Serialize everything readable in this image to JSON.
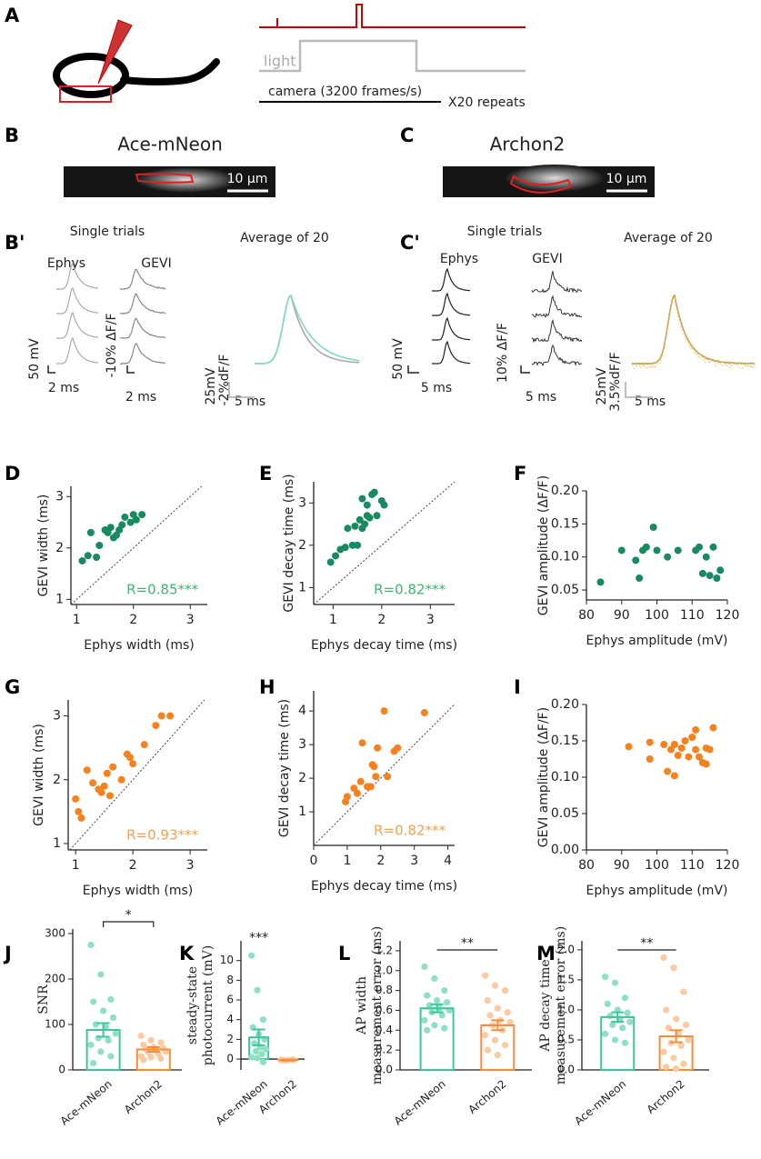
{
  "figure": {
    "A": {
      "label": "A",
      "light": "light",
      "camera": "camera (3200 frames/s)",
      "repeats": "X20 repeats"
    },
    "B": {
      "label": "B",
      "title": "Ace-mNeon",
      "scale": "10 μm"
    },
    "C": {
      "label": "C",
      "title": "Archon2",
      "scale": "10 μm"
    },
    "B_prime": {
      "label": "B'",
      "single": "Single trials",
      "ephys": "Ephys",
      "gevi": "GEVI",
      "average": "Average of 20",
      "ephys_v": "50 mV",
      "ephys_t": "2 ms",
      "gevi_v": "-10% ΔF/F",
      "gevi_t": "2 ms",
      "avg_v1": "25mV",
      "avg_v2": "-2%dF/F",
      "avg_t": "5 ms"
    },
    "C_prime": {
      "label": "C'",
      "single": "Single trials",
      "ephys": "Ephys",
      "gevi": "GEVI",
      "average": "Average of 20",
      "ephys_v": "50 mV",
      "ephys_t": "5 ms",
      "gevi_v": "10% ΔF/F",
      "gevi_t": "5 ms",
      "avg_v1": "25mV",
      "avg_v2": "3.5%dF/F",
      "avg_t": "5 ms"
    }
  },
  "chart_data": [
    {
      "type": "scatter",
      "panel": "D",
      "xlabel": "Ephys width (ms)",
      "ylabel": "GEVI width (ms)",
      "x": [
        1.1,
        1.2,
        1.35,
        1.25,
        1.4,
        1.5,
        1.55,
        1.6,
        1.65,
        1.7,
        1.75,
        1.8,
        1.85,
        1.95,
        2.0,
        2.05,
        2.15
      ],
      "values": [
        1.75,
        1.85,
        1.82,
        2.3,
        2.05,
        2.35,
        2.3,
        2.4,
        2.2,
        2.25,
        2.35,
        2.45,
        2.6,
        2.5,
        2.65,
        2.55,
        2.65
      ],
      "color": "#178a5e",
      "xlim": [
        0.9,
        3.3
      ],
      "ylim": [
        0.9,
        3.2
      ],
      "xticks": [
        1,
        2,
        3
      ],
      "yticks": [
        1,
        2,
        3
      ],
      "identity_line": true,
      "annotation": "R=0.85***",
      "annotation_color": "#3cb86e"
    },
    {
      "type": "scatter",
      "panel": "E",
      "xlabel": "Ephys decay time (ms)",
      "ylabel": "GEVI decay time (ms)",
      "x": [
        0.95,
        1.05,
        1.15,
        1.25,
        1.3,
        1.4,
        1.45,
        1.5,
        1.55,
        1.6,
        1.65,
        1.7,
        1.75,
        1.7,
        1.8,
        1.85,
        1.9,
        2.0,
        2.05,
        1.6
      ],
      "values": [
        1.6,
        1.75,
        1.9,
        1.95,
        2.4,
        2.0,
        2.45,
        2.0,
        2.6,
        2.4,
        2.5,
        2.7,
        2.65,
        2.95,
        3.2,
        3.25,
        2.7,
        3.05,
        2.95,
        3.1
      ],
      "color": "#178a5e",
      "xlim": [
        0.6,
        3.5
      ],
      "ylim": [
        0.6,
        3.5
      ],
      "xticks": [
        1,
        2,
        3
      ],
      "yticks": [
        1,
        2,
        3
      ],
      "identity_line": true,
      "annotation": "R=0.82***",
      "annotation_color": "#3cb86e"
    },
    {
      "type": "scatter",
      "panel": "F",
      "xlabel": "Ephys amplitude (mV)",
      "ylabel": "GEVI amplitude (ΔF/F)",
      "x": [
        84,
        90,
        94,
        95,
        96,
        97,
        99,
        100,
        103,
        106,
        111,
        112,
        113,
        114,
        115,
        116,
        117,
        118
      ],
      "values": [
        0.062,
        0.11,
        0.095,
        0.068,
        0.11,
        0.115,
        0.145,
        0.11,
        0.1,
        0.11,
        0.11,
        0.115,
        0.075,
        0.1,
        0.072,
        0.115,
        0.068,
        0.08
      ],
      "color": "#178a5e",
      "xlim": [
        80,
        120
      ],
      "ylim": [
        0.035,
        0.2
      ],
      "xticks": [
        80,
        90,
        100,
        110,
        120
      ],
      "yticks": [
        0.05,
        {
          "value": 0.1,
          "label": "0.10"
        },
        0.15,
        {
          "value": 0.2,
          "label": "0.20"
        }
      ],
      "identity_line": false
    },
    {
      "type": "scatter",
      "panel": "G",
      "xlabel": "Ephys width (ms)",
      "ylabel": "GEVI width (ms)",
      "x": [
        1.0,
        1.05,
        1.1,
        1.2,
        1.3,
        1.4,
        1.45,
        1.5,
        1.55,
        1.6,
        1.65,
        1.8,
        1.9,
        1.95,
        2.0,
        2.2,
        2.4,
        2.5,
        2.65
      ],
      "values": [
        1.7,
        1.5,
        1.4,
        2.15,
        1.95,
        1.85,
        1.8,
        1.9,
        2.1,
        1.75,
        2.2,
        2.0,
        2.4,
        2.35,
        2.25,
        2.55,
        2.85,
        3.0,
        3.0
      ],
      "color": "#f5821f",
      "xlim": [
        0.87,
        3.3
      ],
      "ylim": [
        0.9,
        3.25
      ],
      "xticks": [
        1,
        2,
        3
      ],
      "yticks": [
        1,
        2,
        3
      ],
      "identity_line": true,
      "annotation": "R=0.93***",
      "annotation_color": "#f5a04f"
    },
    {
      "type": "scatter",
      "panel": "H",
      "xlabel": "Ephys decay time (ms)",
      "ylabel": "GEVI decay time (ms)",
      "x": [
        0.95,
        1.0,
        1.2,
        1.3,
        1.4,
        1.45,
        1.6,
        1.7,
        1.75,
        1.8,
        1.85,
        1.9,
        2.1,
        2.2,
        2.4,
        2.5,
        3.3
      ],
      "values": [
        1.3,
        1.45,
        1.7,
        1.55,
        1.9,
        3.05,
        1.75,
        1.75,
        2.4,
        2.35,
        2.05,
        2.9,
        4.0,
        2.05,
        2.8,
        2.9,
        3.95
      ],
      "color": "#f5821f",
      "xlim": [
        0,
        4.2
      ],
      "ylim": [
        0,
        4.6
      ],
      "xticks": [
        0,
        1,
        2,
        3,
        4
      ],
      "yticks": [
        1,
        2,
        3,
        4
      ],
      "identity_line": true,
      "annotation": "R=0.82***",
      "annotation_color": "#f5a04f"
    },
    {
      "type": "scatter",
      "panel": "I",
      "xlabel": "Ephys amplitude (mV)",
      "ylabel": "GEVI amplitude (ΔF/F)",
      "x": [
        92,
        98,
        98,
        102,
        103,
        104,
        105,
        105,
        106,
        107,
        108,
        109,
        110,
        111,
        111,
        112,
        113,
        114,
        114,
        115,
        116
      ],
      "values": [
        0.142,
        0.148,
        0.125,
        0.145,
        0.108,
        0.138,
        0.102,
        0.145,
        0.13,
        0.14,
        0.15,
        0.128,
        0.155,
        0.165,
        0.138,
        0.128,
        0.12,
        0.14,
        0.118,
        0.138,
        0.168
      ],
      "color": "#f5821f",
      "xlim": [
        80,
        120
      ],
      "ylim": [
        0,
        0.2
      ],
      "xticks": [
        80,
        90,
        100,
        110,
        120
      ],
      "yticks": [
        {
          "value": 0,
          "label": "0.00"
        },
        0.05,
        {
          "value": 0.1,
          "label": "0.10"
        },
        0.15,
        {
          "value": 0.2,
          "label": "0.20"
        }
      ],
      "identity_line": false
    },
    {
      "type": "bar",
      "panel": "J",
      "ylabel": [
        "SNR"
      ],
      "categories": [
        "Ace-mNeon",
        "Archon2"
      ],
      "values": [
        88,
        45
      ],
      "errors": [
        15,
        5
      ],
      "points": [
        [
          275,
          210,
          155,
          150,
          130,
          115,
          100,
          95,
          80,
          70,
          65,
          55,
          40,
          30,
          15
        ],
        [
          75,
          65,
          60,
          55,
          50,
          48,
          45,
          42,
          40,
          38,
          35,
          30,
          28,
          25,
          22
        ]
      ],
      "colors": [
        "#3cc79a",
        "#f58d3a"
      ],
      "point_colors": [
        "#8fe0c3",
        "#fdc9a0"
      ],
      "ylim": [
        0,
        310
      ],
      "yticks": [
        0,
        100,
        200,
        300
      ],
      "significance": "*",
      "significance_bracket": true
    },
    {
      "type": "bar",
      "panel": "K",
      "ylabel": [
        "steady-state",
        "photocurrent (mV)"
      ],
      "categories": [
        "Ace-mNeon",
        "Archon2"
      ],
      "values": [
        2.2,
        -0.1
      ],
      "errors": [
        0.8,
        0.05
      ],
      "points": [
        [
          10.5,
          7,
          4,
          3.2,
          2.5,
          2,
          1.6,
          1.2,
          1.0,
          0.8,
          0.5,
          0.2,
          0.1,
          -0.3
        ],
        [
          -0.1,
          -0.15,
          -0.05,
          -0.1,
          -0.12,
          -0.08,
          -0.1
        ]
      ],
      "colors": [
        "#3cc79a",
        "#f58d3a"
      ],
      "point_colors": [
        "#8fe0c3",
        "#fdc9a0"
      ],
      "ylim": [
        -1.1,
        12
      ],
      "yticks": [
        0,
        2,
        4,
        6,
        8,
        10
      ],
      "significance": "***",
      "significance_bracket": false
    },
    {
      "type": "bar",
      "panel": "L",
      "ylabel": [
        "AP width",
        "measurement error (ms)"
      ],
      "categories": [
        "Ace-mNeon",
        "Archon2"
      ],
      "values": [
        0.62,
        0.45
      ],
      "errors": [
        0.04,
        0.05
      ],
      "points": [
        [
          1.04,
          0.92,
          0.8,
          0.75,
          0.7,
          0.68,
          0.65,
          0.62,
          0.6,
          0.58,
          0.55,
          0.5,
          0.45,
          0.42,
          0.4
        ],
        [
          0.95,
          0.85,
          0.8,
          0.7,
          0.62,
          0.58,
          0.55,
          0.5,
          0.48,
          0.45,
          0.4,
          0.35,
          0.3,
          0.25,
          0.2,
          0.15
        ]
      ],
      "colors": [
        "#3cc79a",
        "#f58d3a"
      ],
      "point_colors": [
        "#8fe0c3",
        "#fdc9a0"
      ],
      "ylim": [
        0,
        1.3
      ],
      "yticks": [
        {
          "value": 0,
          "label": "0.0"
        },
        0.2,
        0.4,
        0.6,
        0.8,
        {
          "value": 1,
          "label": "1.0"
        },
        1.2
      ],
      "significance": "**",
      "significance_bracket": true
    },
    {
      "type": "bar",
      "panel": "M",
      "ylabel": [
        "AP decay time",
        "measurement error (ms)"
      ],
      "categories": [
        "Ace-mNeon",
        "Archon2"
      ],
      "values": [
        0.88,
        0.56
      ],
      "errors": [
        0.08,
        0.1
      ],
      "points": [
        [
          1.55,
          1.45,
          1.2,
          1.1,
          1.0,
          0.95,
          0.9,
          0.85,
          0.8,
          0.75,
          0.7,
          0.6,
          0.5,
          0.45
        ],
        [
          1.87,
          1.7,
          1.3,
          1.0,
          0.85,
          0.75,
          0.7,
          0.6,
          0.5,
          0.45,
          0.4,
          0.3,
          0.2,
          0.1,
          0.05,
          0.02
        ]
      ],
      "colors": [
        "#3cc79a",
        "#f58d3a"
      ],
      "point_colors": [
        "#8fe0c3",
        "#fdc9a0"
      ],
      "ylim": [
        0,
        2.15
      ],
      "yticks": [
        {
          "value": 0,
          "label": "0.0"
        },
        0.5,
        {
          "value": 1,
          "label": "1.0"
        },
        1.5,
        {
          "value": 2,
          "label": "2.0"
        }
      ],
      "significance": "**",
      "significance_bracket": true
    }
  ]
}
